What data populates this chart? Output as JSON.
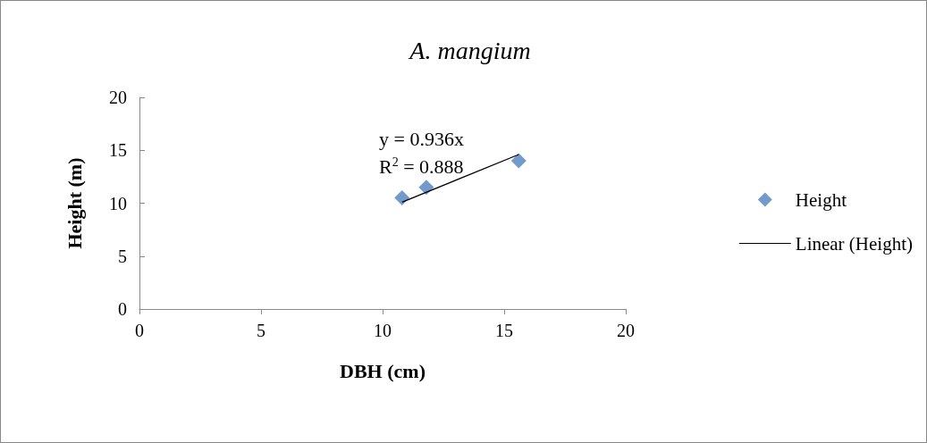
{
  "chart_data": {
    "type": "scatter",
    "title": "A. mangium",
    "xlabel": "DBH (cm)",
    "ylabel": "Height (m)",
    "x": [
      10.8,
      11.8,
      15.6
    ],
    "series": [
      {
        "name": "Height",
        "color": "#4f81bd",
        "values": [
          10.5,
          11.5,
          14.0
        ],
        "marker": "diamond"
      },
      {
        "name": "Linear (Height)",
        "type": "line",
        "color": "#000000",
        "x": [
          10.8,
          15.6
        ],
        "values": [
          10.1,
          14.6
        ],
        "marker": "none",
        "line_style": "solid"
      }
    ],
    "annotations": [
      "y = 0.936x",
      "R$^{2}$ = 0.888"
    ],
    "xlim": [
      0,
      20
    ],
    "xticks": [
      0,
      5,
      10,
      15,
      20
    ],
    "ylim": [
      0,
      20
    ],
    "yticks": [
      0,
      5,
      10,
      15,
      20
    ],
    "grid": false,
    "legend": "right"
  }
}
